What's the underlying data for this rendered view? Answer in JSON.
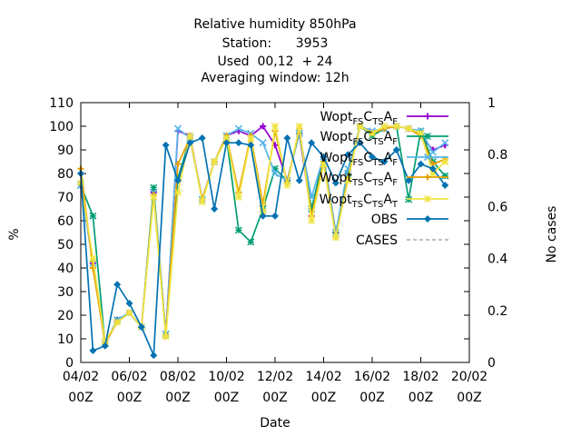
{
  "chart_data": {
    "type": "line",
    "title_lines": [
      "Relative humidity 850hPa",
      "Station:      3953",
      "Used  00,12  + 24",
      "Averaging window: 12h"
    ],
    "xlabel": "Date",
    "ylabel": "%",
    "y2label": "No cases",
    "ylim": [
      0,
      110
    ],
    "y2lim": [
      0,
      1
    ],
    "yticks": [
      "0",
      "10",
      "20",
      "30",
      "40",
      "50",
      "60",
      "70",
      "80",
      "90",
      "100",
      "110"
    ],
    "y2ticks": [
      "0",
      "0.2",
      "0.4",
      "0.6",
      "0.8",
      "1"
    ],
    "xlim_days": [
      0,
      16
    ],
    "xticks": [
      {
        "line1": "04/02",
        "line2": "00Z",
        "day": 0
      },
      {
        "line1": "06/02",
        "line2": "00Z",
        "day": 2
      },
      {
        "line1": "08/02",
        "line2": "00Z",
        "day": 4
      },
      {
        "line1": "10/02",
        "line2": "00Z",
        "day": 6
      },
      {
        "line1": "12/02",
        "line2": "00Z",
        "day": 8
      },
      {
        "line1": "14/02",
        "line2": "00Z",
        "day": 10
      },
      {
        "line1": "16/02",
        "line2": "00Z",
        "day": 12
      },
      {
        "line1": "18/02",
        "line2": "00Z",
        "day": 14
      },
      {
        "line1": "20/02",
        "line2": "00Z",
        "day": 16
      }
    ],
    "legend_position": "top-right",
    "times": [
      "04/02 00Z",
      "04/02 12Z",
      "05/02 00Z",
      "05/02 12Z",
      "06/02 00Z",
      "06/02 12Z",
      "07/02 00Z",
      "07/02 12Z",
      "08/02 00Z",
      "08/02 12Z",
      "09/02 00Z",
      "09/02 12Z",
      "10/02 00Z",
      "10/02 12Z",
      "11/02 00Z",
      "11/02 12Z",
      "12/02 00Z",
      "12/02 12Z",
      "13/02 00Z",
      "13/02 12Z",
      "14/02 00Z",
      "14/02 12Z",
      "15/02 00Z",
      "15/02 12Z",
      "16/02 00Z",
      "16/02 12Z",
      "17/02 00Z",
      "17/02 12Z",
      "18/02 00Z",
      "18/02 12Z",
      "19/02 00Z"
    ],
    "series": [
      {
        "label_main": "Wopt",
        "label_sub1": "FS",
        "label_mid": "C",
        "label_sub2": "TS",
        "label_end": "A",
        "label_sub3": "F",
        "color": "#9400d3",
        "marker": "plus",
        "values": [
          75,
          42,
          8,
          18,
          21,
          15,
          72,
          12,
          98,
          96,
          69,
          85,
          96,
          98,
          96,
          100,
          92,
          77,
          97,
          62,
          87,
          55,
          80,
          100,
          97,
          99,
          100,
          99,
          96,
          90,
          92
        ]
      },
      {
        "label_main": "Wopt",
        "label_sub1": "FS",
        "label_mid": "C",
        "label_sub2": "TS",
        "label_end": "A",
        "label_sub3": "F",
        "color": "#009e73",
        "marker": "star",
        "values": [
          75,
          62,
          8,
          18,
          21,
          15,
          74,
          12,
          78,
          95,
          69,
          85,
          95,
          56,
          51,
          65,
          82,
          77,
          97,
          65,
          87,
          55,
          80,
          100,
          96,
          99,
          100,
          69,
          98,
          85,
          79
        ]
      },
      {
        "label_main": "Wopt",
        "label_sub1": "FS",
        "label_mid": "C",
        "label_sub2": "TS",
        "label_end": "A",
        "label_sub3": "F",
        "color": "#56b4e9",
        "marker": "x",
        "values": [
          75,
          42,
          8,
          18,
          21,
          15,
          72,
          12,
          99,
          95,
          69,
          85,
          96,
          99,
          97,
          93,
          80,
          77,
          97,
          70,
          87,
          55,
          82,
          100,
          98,
          99,
          100,
          99,
          98,
          89,
          93
        ]
      },
      {
        "label_main": "Wopt",
        "label_sub1": "TS",
        "label_mid": "C",
        "label_sub2": "TS",
        "label_end": "A",
        "label_sub3": "F",
        "color": "#e69f00",
        "marker": "plus",
        "values": [
          82,
          40,
          8,
          17,
          21,
          15,
          71,
          11,
          84,
          95,
          69,
          85,
          96,
          72,
          96,
          67,
          98,
          76,
          99,
          62,
          85,
          53,
          78,
          100,
          97,
          99,
          100,
          99,
          96,
          84,
          86
        ]
      },
      {
        "label_main": "Wopt",
        "label_sub1": "TS",
        "label_mid": "C",
        "label_sub2": "TS",
        "label_end": "A",
        "label_sub3": "T",
        "color": "#f0e442",
        "marker": "star",
        "values": [
          76,
          44,
          9,
          17,
          21,
          15,
          70,
          11,
          72,
          96,
          68,
          85,
          95,
          70,
          95,
          64,
          100,
          75,
          100,
          60,
          84,
          53,
          77,
          100,
          97,
          100,
          100,
          99,
          97,
          80,
          85
        ]
      },
      {
        "label": "OBS",
        "color": "#0072b2",
        "marker": "diamond",
        "values": [
          80,
          5,
          7,
          33,
          25,
          15,
          3,
          92,
          77,
          93,
          95,
          65,
          93,
          93,
          92,
          62,
          62,
          95,
          77,
          93,
          87,
          76,
          88,
          93,
          87,
          85,
          90,
          77,
          84,
          82,
          75
        ]
      },
      {
        "label": "CASES",
        "color": "#808080",
        "dashed": true,
        "values": []
      }
    ]
  }
}
